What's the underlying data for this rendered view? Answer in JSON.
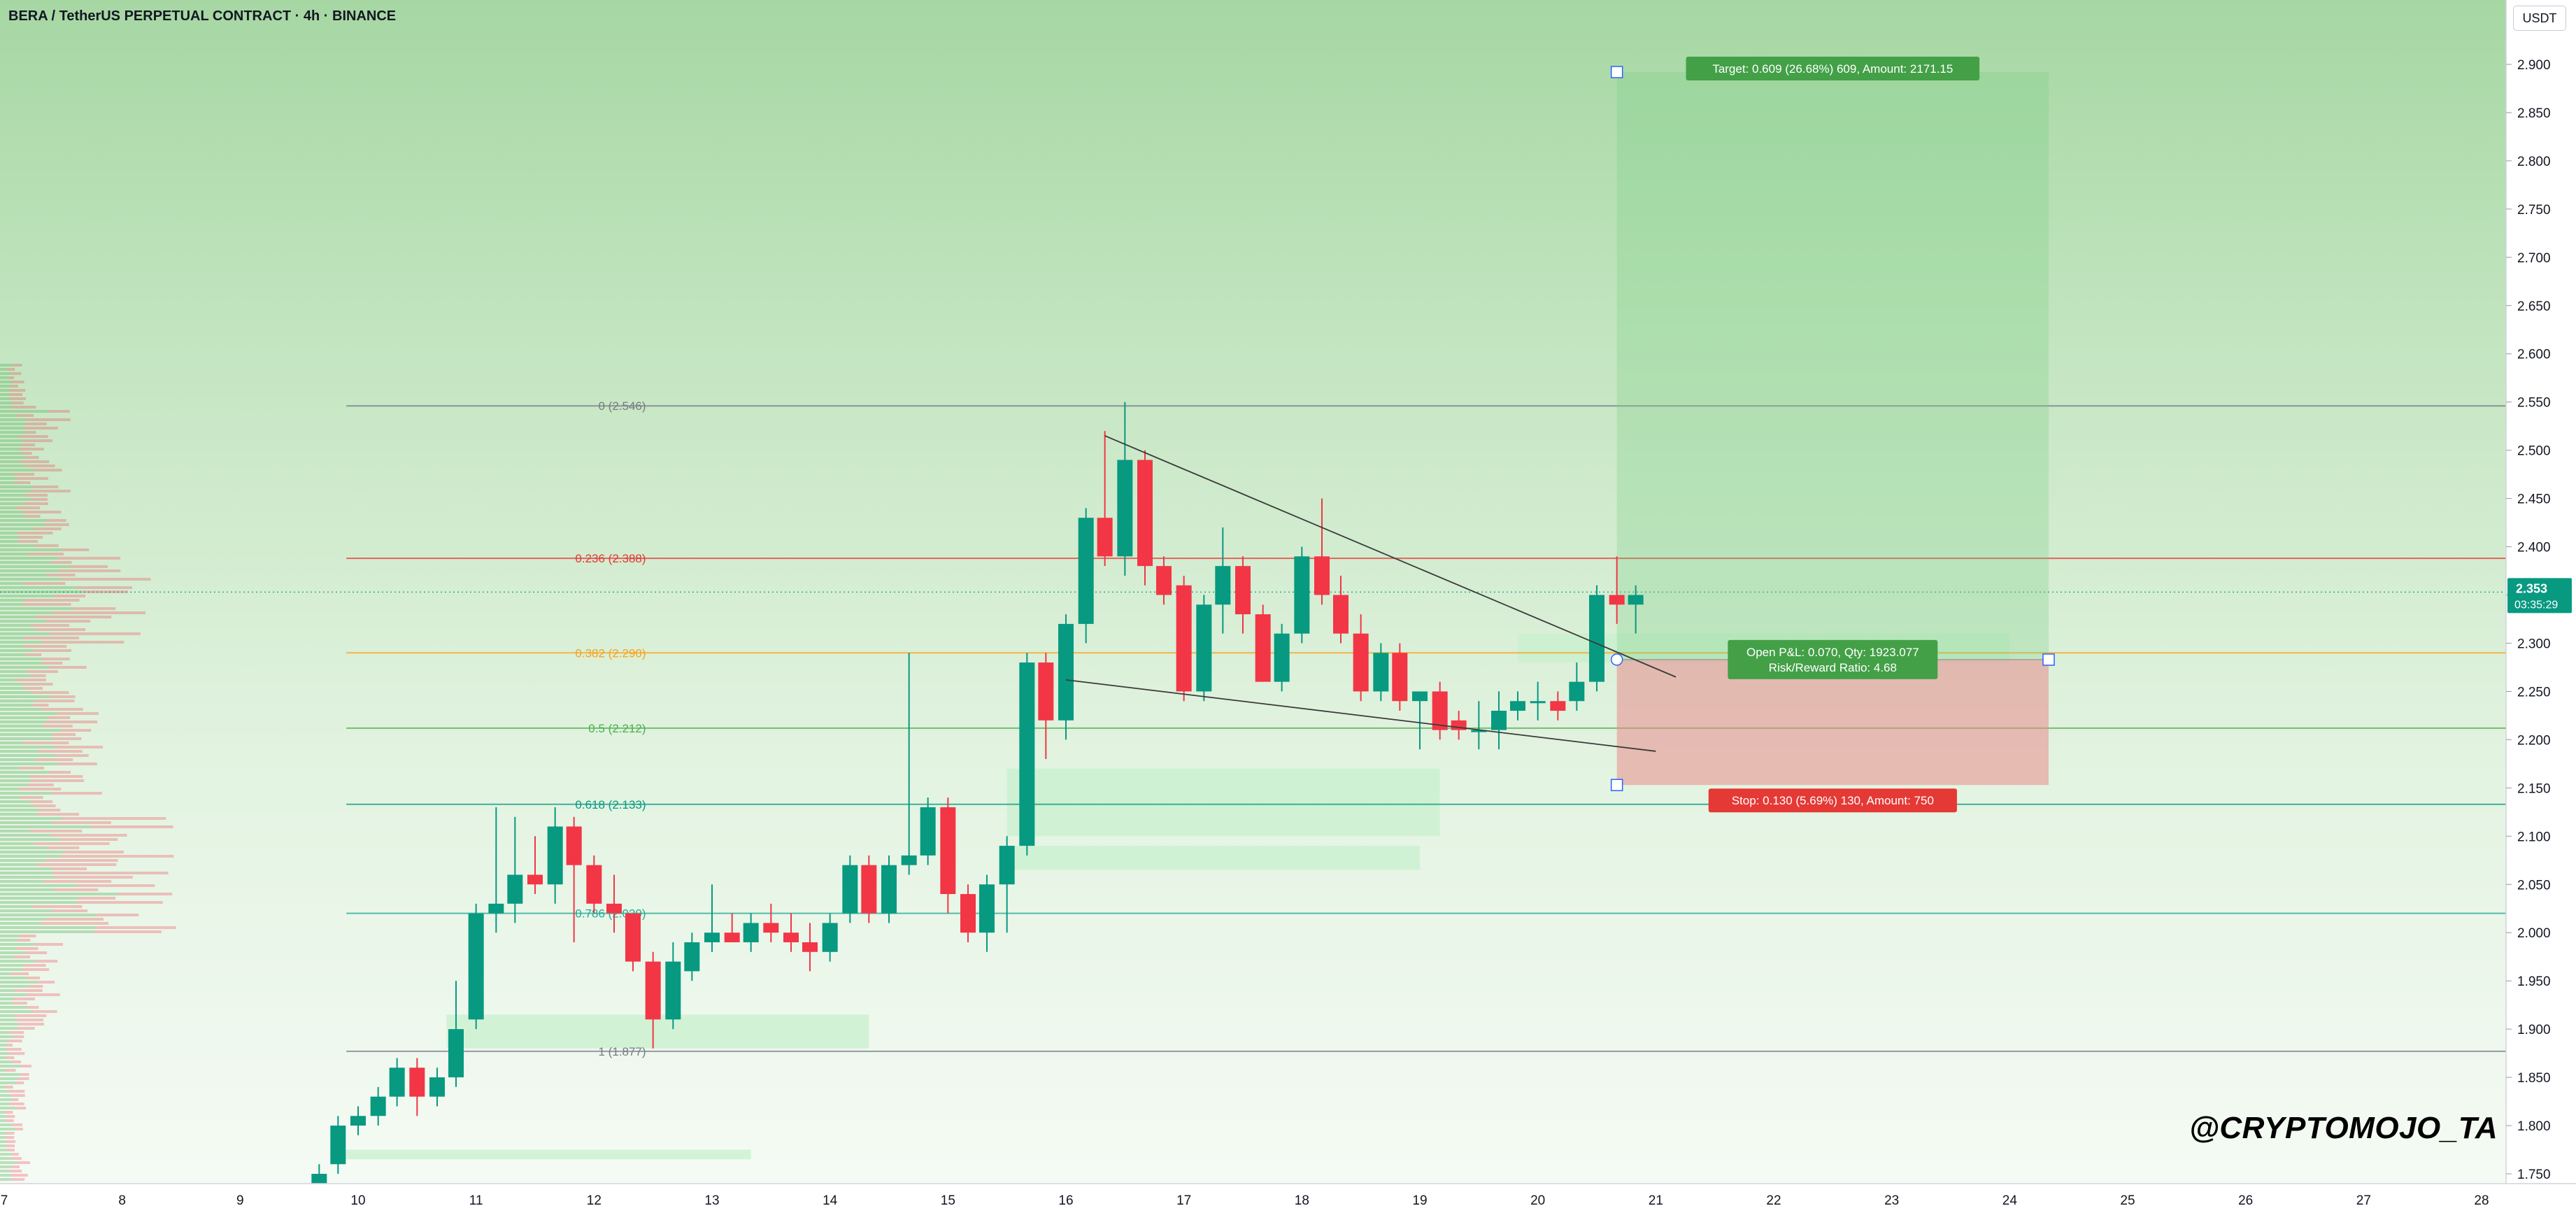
{
  "header": {
    "symbol": "BERA / TetherUS PERPETUAL CONTRACT",
    "sep1": " · ",
    "interval": "4h",
    "sep2": " · ",
    "exchange": "BINANCE",
    "currency_button": "USDT"
  },
  "watermark": "@CRYPTOMOJO_TA",
  "colors": {
    "up": "#089981",
    "down": "#f23645",
    "fib_red": "#e53935",
    "fib_orange": "#f7a21b",
    "fib_green": "#4caf50",
    "fib_teal": "#22ab94",
    "fib_gray": "#787b86",
    "target_green": "#43a047",
    "stop_red": "#e53935"
  },
  "chart_data": {
    "type": "candlestick",
    "x_axis": {
      "ticks": [
        {
          "label": "7",
          "x": 7
        },
        {
          "label": "8",
          "x": 8
        },
        {
          "label": "9",
          "x": 9
        },
        {
          "label": "10",
          "x": 10
        },
        {
          "label": "11",
          "x": 11
        },
        {
          "label": "12",
          "x": 12
        },
        {
          "label": "13",
          "x": 13
        },
        {
          "label": "14",
          "x": 14
        },
        {
          "label": "15",
          "x": 15
        },
        {
          "label": "16",
          "x": 16
        },
        {
          "label": "17",
          "x": 17
        },
        {
          "label": "18",
          "x": 18
        },
        {
          "label": "19",
          "x": 19
        },
        {
          "label": "20",
          "x": 20
        },
        {
          "label": "21",
          "x": 21
        },
        {
          "label": "22",
          "x": 22
        },
        {
          "label": "23",
          "x": 23
        },
        {
          "label": "24",
          "x": 24
        },
        {
          "label": "25",
          "x": 25
        },
        {
          "label": "26",
          "x": 26
        },
        {
          "label": "27",
          "x": 27
        },
        {
          "label": "28",
          "x": 28
        }
      ],
      "range": [
        7,
        28.2
      ]
    },
    "y_axis": {
      "ticks": [
        "1.750",
        "1.800",
        "1.850",
        "1.900",
        "1.950",
        "2.000",
        "2.050",
        "2.100",
        "2.150",
        "2.200",
        "2.250",
        "2.300",
        "2.350",
        "2.400",
        "2.450",
        "2.500",
        "2.550",
        "2.600",
        "2.650",
        "2.700",
        "2.750",
        "2.800",
        "2.850",
        "2.900"
      ],
      "range": [
        1.74,
        2.95
      ]
    },
    "candles": [
      {
        "x": 9.67,
        "o": 1.74,
        "h": 1.76,
        "l": 1.73,
        "c": 1.75
      },
      {
        "x": 9.83,
        "o": 1.76,
        "h": 1.81,
        "l": 1.75,
        "c": 1.8
      },
      {
        "x": 10.0,
        "o": 1.8,
        "h": 1.82,
        "l": 1.79,
        "c": 1.81
      },
      {
        "x": 10.17,
        "o": 1.81,
        "h": 1.84,
        "l": 1.8,
        "c": 1.83
      },
      {
        "x": 10.33,
        "o": 1.83,
        "h": 1.87,
        "l": 1.82,
        "c": 1.86
      },
      {
        "x": 10.5,
        "o": 1.86,
        "h": 1.87,
        "l": 1.81,
        "c": 1.83
      },
      {
        "x": 10.67,
        "o": 1.83,
        "h": 1.86,
        "l": 1.82,
        "c": 1.85
      },
      {
        "x": 10.83,
        "o": 1.85,
        "h": 1.95,
        "l": 1.84,
        "c": 1.9
      },
      {
        "x": 11.0,
        "o": 1.91,
        "h": 2.03,
        "l": 1.9,
        "c": 2.02
      },
      {
        "x": 11.17,
        "o": 2.02,
        "h": 2.13,
        "l": 2.0,
        "c": 2.03
      },
      {
        "x": 11.33,
        "o": 2.03,
        "h": 2.12,
        "l": 2.01,
        "c": 2.06
      },
      {
        "x": 11.5,
        "o": 2.06,
        "h": 2.1,
        "l": 2.04,
        "c": 2.05
      },
      {
        "x": 11.67,
        "o": 2.05,
        "h": 2.13,
        "l": 2.03,
        "c": 2.11
      },
      {
        "x": 11.83,
        "o": 2.11,
        "h": 2.12,
        "l": 1.99,
        "c": 2.07
      },
      {
        "x": 12.0,
        "o": 2.07,
        "h": 2.08,
        "l": 2.02,
        "c": 2.03
      },
      {
        "x": 12.17,
        "o": 2.03,
        "h": 2.06,
        "l": 2.0,
        "c": 2.02
      },
      {
        "x": 12.33,
        "o": 2.02,
        "h": 2.02,
        "l": 1.96,
        "c": 1.97
      },
      {
        "x": 12.5,
        "o": 1.97,
        "h": 1.98,
        "l": 1.88,
        "c": 1.91
      },
      {
        "x": 12.67,
        "o": 1.91,
        "h": 1.99,
        "l": 1.9,
        "c": 1.97
      },
      {
        "x": 12.83,
        "o": 1.96,
        "h": 2.0,
        "l": 1.95,
        "c": 1.99
      },
      {
        "x": 13.0,
        "o": 1.99,
        "h": 2.05,
        "l": 1.98,
        "c": 2.0
      },
      {
        "x": 13.17,
        "o": 2.0,
        "h": 2.02,
        "l": 1.99,
        "c": 1.99
      },
      {
        "x": 13.33,
        "o": 1.99,
        "h": 2.02,
        "l": 1.98,
        "c": 2.01
      },
      {
        "x": 13.5,
        "o": 2.01,
        "h": 2.03,
        "l": 1.99,
        "c": 2.0
      },
      {
        "x": 13.67,
        "o": 2.0,
        "h": 2.02,
        "l": 1.98,
        "c": 1.99
      },
      {
        "x": 13.83,
        "o": 1.99,
        "h": 2.01,
        "l": 1.96,
        "c": 1.98
      },
      {
        "x": 14.0,
        "o": 1.98,
        "h": 2.02,
        "l": 1.97,
        "c": 2.01
      },
      {
        "x": 14.17,
        "o": 2.02,
        "h": 2.08,
        "l": 2.01,
        "c": 2.07
      },
      {
        "x": 14.33,
        "o": 2.07,
        "h": 2.08,
        "l": 2.01,
        "c": 2.02
      },
      {
        "x": 14.5,
        "o": 2.02,
        "h": 2.08,
        "l": 2.01,
        "c": 2.07
      },
      {
        "x": 14.67,
        "o": 2.07,
        "h": 2.29,
        "l": 2.06,
        "c": 2.08
      },
      {
        "x": 14.83,
        "o": 2.08,
        "h": 2.14,
        "l": 2.07,
        "c": 2.13
      },
      {
        "x": 15.0,
        "o": 2.13,
        "h": 2.14,
        "l": 2.02,
        "c": 2.04
      },
      {
        "x": 15.17,
        "o": 2.04,
        "h": 2.05,
        "l": 1.99,
        "c": 2.0
      },
      {
        "x": 15.33,
        "o": 2.0,
        "h": 2.06,
        "l": 1.98,
        "c": 2.05
      },
      {
        "x": 15.5,
        "o": 2.05,
        "h": 2.1,
        "l": 2.0,
        "c": 2.09
      },
      {
        "x": 15.67,
        "o": 2.09,
        "h": 2.29,
        "l": 2.08,
        "c": 2.28
      },
      {
        "x": 15.83,
        "o": 2.28,
        "h": 2.29,
        "l": 2.18,
        "c": 2.22
      },
      {
        "x": 16.0,
        "o": 2.22,
        "h": 2.33,
        "l": 2.2,
        "c": 2.32
      },
      {
        "x": 16.17,
        "o": 2.32,
        "h": 2.44,
        "l": 2.3,
        "c": 2.43
      },
      {
        "x": 16.33,
        "o": 2.43,
        "h": 2.52,
        "l": 2.38,
        "c": 2.39
      },
      {
        "x": 16.5,
        "o": 2.39,
        "h": 2.55,
        "l": 2.37,
        "c": 2.49
      },
      {
        "x": 16.67,
        "o": 2.49,
        "h": 2.5,
        "l": 2.36,
        "c": 2.38
      },
      {
        "x": 16.83,
        "o": 2.38,
        "h": 2.39,
        "l": 2.34,
        "c": 2.35
      },
      {
        "x": 17.0,
        "o": 2.36,
        "h": 2.37,
        "l": 2.24,
        "c": 2.25
      },
      {
        "x": 17.17,
        "o": 2.25,
        "h": 2.35,
        "l": 2.24,
        "c": 2.34
      },
      {
        "x": 17.33,
        "o": 2.34,
        "h": 2.42,
        "l": 2.31,
        "c": 2.38
      },
      {
        "x": 17.5,
        "o": 2.38,
        "h": 2.39,
        "l": 2.31,
        "c": 2.33
      },
      {
        "x": 17.67,
        "o": 2.33,
        "h": 2.34,
        "l": 2.26,
        "c": 2.26
      },
      {
        "x": 17.83,
        "o": 2.26,
        "h": 2.32,
        "l": 2.25,
        "c": 2.31
      },
      {
        "x": 18.0,
        "o": 2.31,
        "h": 2.4,
        "l": 2.3,
        "c": 2.39
      },
      {
        "x": 18.17,
        "o": 2.39,
        "h": 2.45,
        "l": 2.34,
        "c": 2.35
      },
      {
        "x": 18.33,
        "o": 2.35,
        "h": 2.37,
        "l": 2.3,
        "c": 2.31
      },
      {
        "x": 18.5,
        "o": 2.31,
        "h": 2.33,
        "l": 2.24,
        "c": 2.25
      },
      {
        "x": 18.67,
        "o": 2.25,
        "h": 2.3,
        "l": 2.24,
        "c": 2.29
      },
      {
        "x": 18.83,
        "o": 2.29,
        "h": 2.3,
        "l": 2.23,
        "c": 2.24
      },
      {
        "x": 19.0,
        "o": 2.24,
        "h": 2.25,
        "l": 2.19,
        "c": 2.25
      },
      {
        "x": 19.17,
        "o": 2.25,
        "h": 2.26,
        "l": 2.2,
        "c": 2.21
      },
      {
        "x": 19.33,
        "o": 2.22,
        "h": 2.23,
        "l": 2.2,
        "c": 2.21
      },
      {
        "x": 19.5,
        "o": 2.21,
        "h": 2.24,
        "l": 2.19,
        "c": 2.21
      },
      {
        "x": 19.67,
        "o": 2.21,
        "h": 2.25,
        "l": 2.19,
        "c": 2.23
      },
      {
        "x": 19.83,
        "o": 2.23,
        "h": 2.25,
        "l": 2.22,
        "c": 2.24
      },
      {
        "x": 20.0,
        "o": 2.24,
        "h": 2.26,
        "l": 2.22,
        "c": 2.24
      },
      {
        "x": 20.17,
        "o": 2.24,
        "h": 2.25,
        "l": 2.22,
        "c": 2.23
      },
      {
        "x": 20.33,
        "o": 2.24,
        "h": 2.28,
        "l": 2.23,
        "c": 2.26
      },
      {
        "x": 20.5,
        "o": 2.26,
        "h": 2.36,
        "l": 2.25,
        "c": 2.35
      },
      {
        "x": 20.67,
        "o": 2.35,
        "h": 2.39,
        "l": 2.32,
        "c": 2.34
      },
      {
        "x": 20.83,
        "o": 2.34,
        "h": 2.36,
        "l": 2.31,
        "c": 2.35
      }
    ],
    "fibonacci": [
      {
        "level": "0",
        "price": 2.546,
        "label": "0 (2.546)",
        "color": "#787b86"
      },
      {
        "level": "0.236",
        "price": 2.388,
        "label": "0.236 (2.388)",
        "color": "#e53935"
      },
      {
        "level": "0.382",
        "price": 2.29,
        "label": "0.382 (2.290)",
        "color": "#f7a21b"
      },
      {
        "level": "0.5",
        "price": 2.212,
        "label": "0.5 (2.212)",
        "color": "#4caf50"
      },
      {
        "level": "0.618",
        "price": 2.133,
        "label": "0.618 (2.133)",
        "color": "#089981"
      },
      {
        "level": "0.786",
        "price": 2.02,
        "label": "0.786 (2.020)",
        "color": "#22ab94"
      },
      {
        "level": "1",
        "price": 1.877,
        "label": "1 (1.877)",
        "color": "#787b86"
      }
    ],
    "current_price": {
      "value": 2.353,
      "label": "2.353",
      "countdown": "03:35:29"
    },
    "trendlines": [
      {
        "x1": 16.33,
        "y1": 2.515,
        "x2": 21.17,
        "y2": 2.265
      },
      {
        "x1": 16.0,
        "y1": 2.262,
        "x2": 21.0,
        "y2": 2.188
      }
    ],
    "position": {
      "x_start": 20.67,
      "x_end": 24.33,
      "entry": 2.283,
      "target": 2.892,
      "stop": 2.153,
      "target_label": "Target: 0.609 (26.68%) 609, Amount: 2171.15",
      "stop_label": "Stop: 0.130 (5.69%) 130, Amount: 750",
      "pnl_label": "Open P&L: 0.070, Qty: 1923.077",
      "rr_label": "Risk/Reward Ratio: 4.68"
    },
    "zones": [
      {
        "x1": 15.5,
        "x2": 19.17,
        "y1": 2.17,
        "y2": 2.1
      },
      {
        "x1": 15.5,
        "x2": 19.0,
        "y1": 2.09,
        "y2": 2.065
      },
      {
        "x1": 10.75,
        "x2": 14.33,
        "y1": 1.915,
        "y2": 1.88
      },
      {
        "x1": 9.83,
        "x2": 13.33,
        "y1": 1.775,
        "y2": 1.765
      },
      {
        "x1": 19.83,
        "x2": 24.0,
        "y1": 2.31,
        "y2": 2.28
      }
    ]
  }
}
